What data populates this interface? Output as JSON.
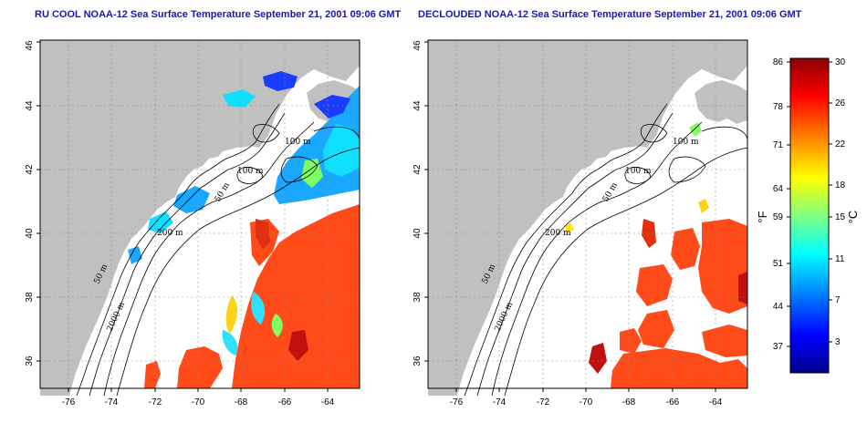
{
  "panels": [
    {
      "id": "left",
      "title": "RU COOL NOAA-12 Sea Surface Temperature September 21, 2001 09:06 GMT"
    },
    {
      "id": "right",
      "title": "DECLOUDED NOAA-12 Sea Surface Temperature September 21, 2001 09:06 GMT"
    }
  ],
  "axes": {
    "lon_ticks": [
      "-76",
      "-74",
      "-72",
      "-70",
      "-68",
      "-66",
      "-64"
    ],
    "lat_ticks": [
      "36",
      "38",
      "40",
      "42",
      "44",
      "46"
    ]
  },
  "contour_labels": {
    "m100a": "100 m",
    "m100b": "100 m",
    "m50a": "50 m",
    "m200": "200 m",
    "m50b": "50 m",
    "m2000": "2000 m"
  },
  "colorbar": {
    "fahrenheit_label": "°F",
    "celsius_label": "°C",
    "fahrenheit_ticks": [
      "86",
      "78",
      "71",
      "64",
      "59",
      "51",
      "44",
      "37"
    ],
    "celsius_ticks": [
      "30",
      "26",
      "22",
      "18",
      "15",
      "11",
      "7",
      "3"
    ],
    "colors": [
      "#00008c",
      "#0000ff",
      "#0080ff",
      "#00ffff",
      "#80ff80",
      "#ffff00",
      "#ff8000",
      "#ff0000",
      "#8c0000"
    ]
  },
  "colors": {
    "land": "#c0c0c0",
    "title": "#1a1aa8",
    "warm": "#ff4a1a",
    "hot": "#c01010"
  }
}
